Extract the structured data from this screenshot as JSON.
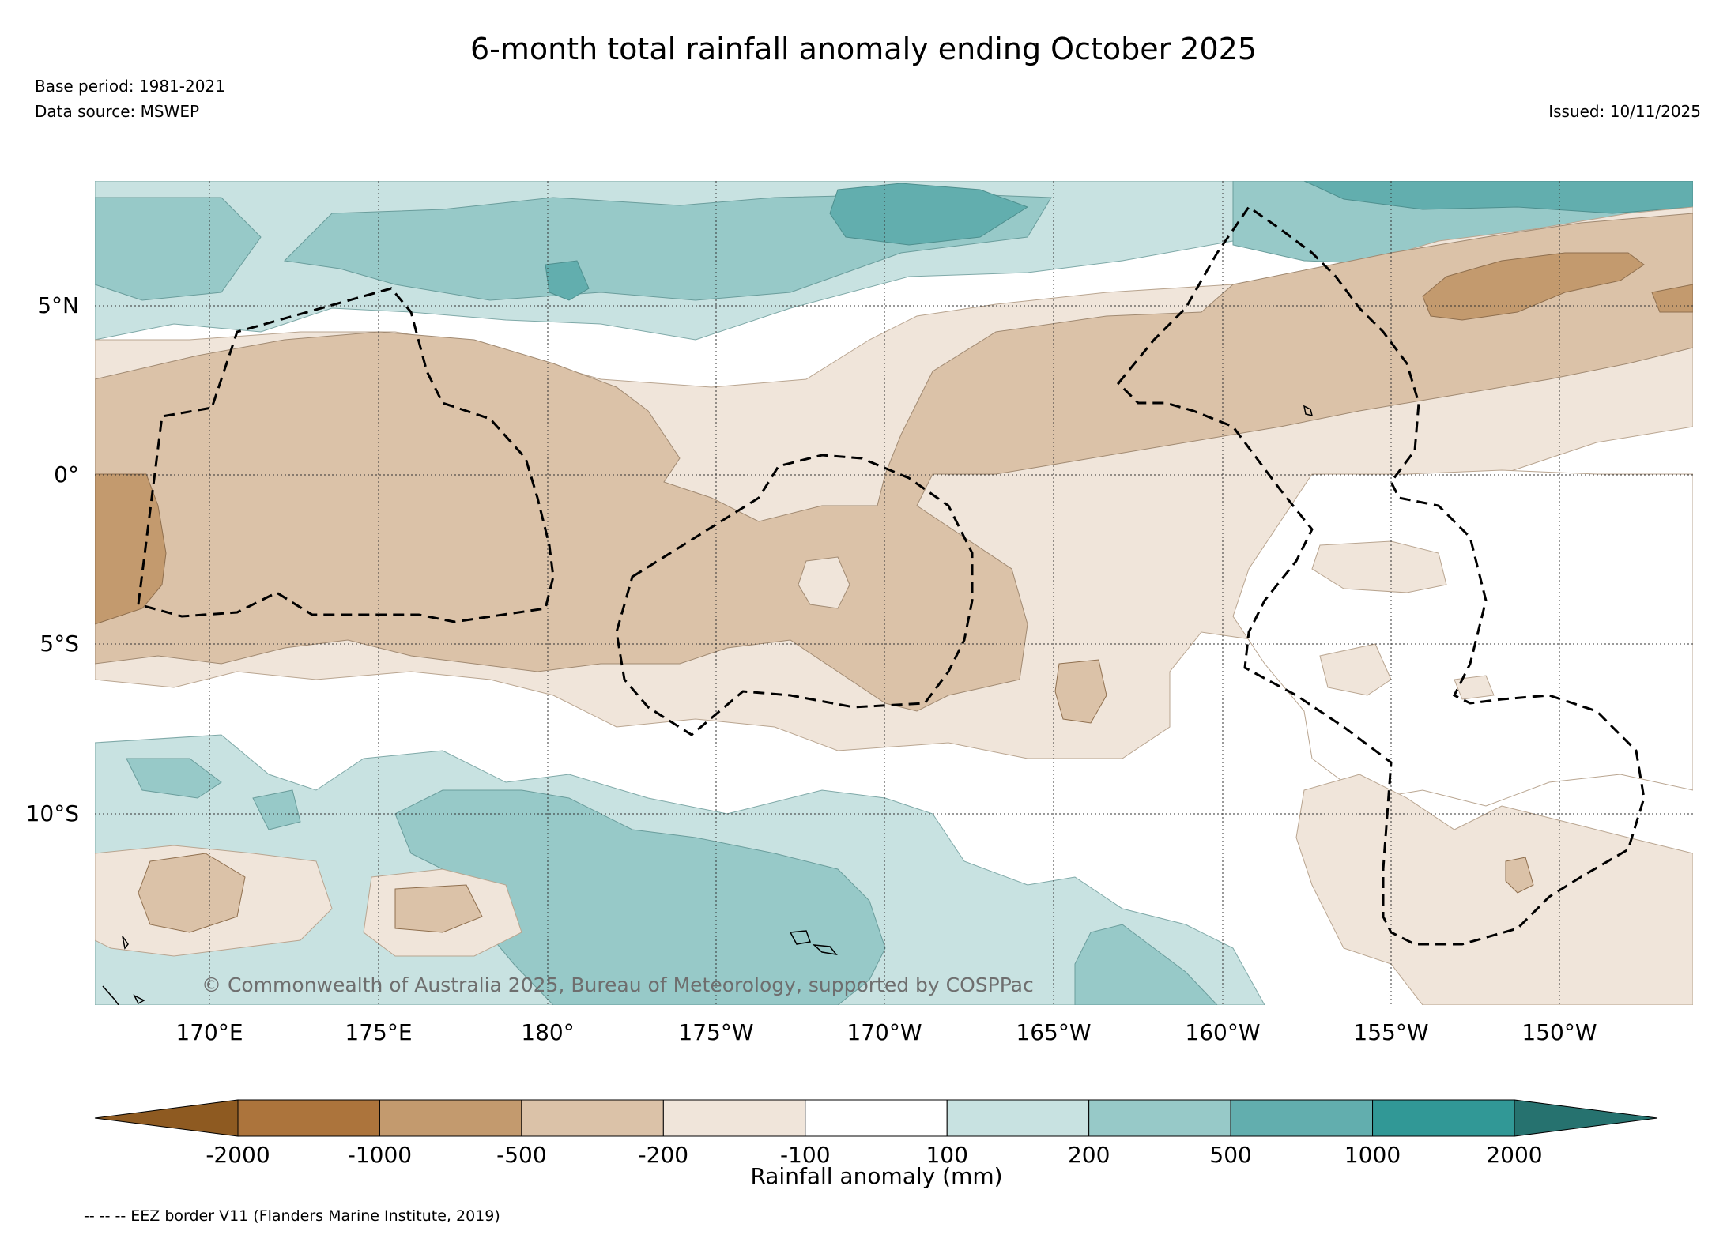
{
  "title": "6-month total rainfall anomaly ending October 2025",
  "base_period": "Base period: 1981-2021",
  "data_source": "Data source: MSWEP",
  "issued": "Issued: 10/11/2025",
  "map": {
    "lat_labels": [
      "5°N",
      "0°",
      "5°S",
      "10°S"
    ],
    "lon_labels": [
      "170°E",
      "175°E",
      "180°",
      "175°W",
      "170°W",
      "165°W",
      "160°W",
      "155°W",
      "150°W"
    ],
    "credit": "© Commonwealth of Australia 2025, Bureau of Meteorology, supported by COSPPac"
  },
  "colorbar": {
    "title": "Rainfall anomaly (mm)",
    "tick_labels": [
      "-2000",
      "-1000",
      "-500",
      "-200",
      "-100",
      "100",
      "200",
      "500",
      "1000",
      "2000"
    ],
    "colors": [
      "#8e5a21",
      "#ac743c",
      "#c39a6e",
      "#dbc2a8",
      "#f0e5da",
      "#ffffff",
      "#c8e2e1",
      "#97c9c8",
      "#62aeae",
      "#319896",
      "#26726f"
    ]
  },
  "legend_note": "-- -- -- EEZ border V11 (Flanders Marine Institute, 2019)"
}
